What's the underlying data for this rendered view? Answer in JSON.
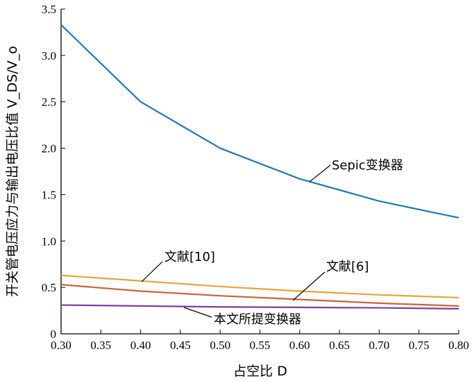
{
  "chart_data": {
    "type": "line",
    "xlabel": "占空比 D",
    "ylabel": "开关管电压应力与输出电压比值 V_DS/V_o",
    "xlim": [
      0.3,
      0.8
    ],
    "ylim": [
      0,
      3.5
    ],
    "x_ticks": [
      "0.30",
      "0.35",
      "0.40",
      "0.45",
      "0.50",
      "0.55",
      "0.60",
      "0.65",
      "0.70",
      "0.75",
      "0.80"
    ],
    "y_ticks": [
      "0",
      "0.5",
      "1.0",
      "1.5",
      "2.0",
      "2.5",
      "3.0",
      "3.5"
    ],
    "grid": false,
    "series": [
      {
        "name": "Sepic变换器",
        "color": "#1f77b4",
        "points": [
          [
            0.3,
            3.33
          ],
          [
            0.4,
            2.5
          ],
          [
            0.5,
            2.0
          ],
          [
            0.6,
            1.67
          ],
          [
            0.7,
            1.43
          ],
          [
            0.8,
            1.25
          ]
        ]
      },
      {
        "name": "文献[10]",
        "color": "#e8a33d",
        "points": [
          [
            0.3,
            0.63
          ],
          [
            0.4,
            0.57
          ],
          [
            0.5,
            0.51
          ],
          [
            0.6,
            0.46
          ],
          [
            0.7,
            0.42
          ],
          [
            0.8,
            0.39
          ]
        ]
      },
      {
        "name": "文献[6]",
        "color": "#c8623a",
        "points": [
          [
            0.3,
            0.53
          ],
          [
            0.4,
            0.46
          ],
          [
            0.5,
            0.41
          ],
          [
            0.6,
            0.37
          ],
          [
            0.7,
            0.33
          ],
          [
            0.8,
            0.3
          ]
        ]
      },
      {
        "name": "本文所提变换器",
        "color": "#7a3e9d",
        "points": [
          [
            0.3,
            0.31
          ],
          [
            0.4,
            0.3
          ],
          [
            0.5,
            0.29
          ],
          [
            0.6,
            0.285
          ],
          [
            0.7,
            0.28
          ],
          [
            0.8,
            0.27
          ]
        ]
      }
    ],
    "annotations": [
      {
        "text": "Sepic变换器"
      },
      {
        "text": "文献[10]"
      },
      {
        "text": "文献[6]"
      },
      {
        "text": "本文所提变换器"
      }
    ]
  }
}
